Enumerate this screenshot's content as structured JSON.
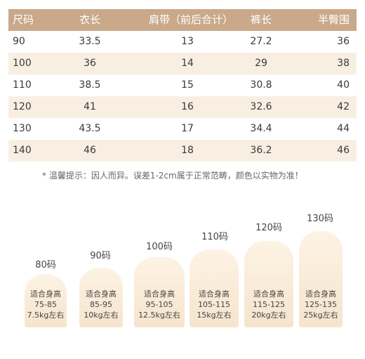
{
  "table": {
    "headers": [
      "尺码",
      "衣长",
      "肩带（前后合计）",
      "裤长",
      "半臀围"
    ],
    "rows": [
      [
        "90",
        "33.5",
        "13",
        "27.2",
        "36"
      ],
      [
        "100",
        "36",
        "14",
        "29",
        "38"
      ],
      [
        "110",
        "38.5",
        "15",
        "30.8",
        "40"
      ],
      [
        "120",
        "41",
        "16",
        "32.6",
        "42"
      ],
      [
        "130",
        "43.5",
        "17",
        "34.4",
        "44"
      ],
      [
        "140",
        "46",
        "18",
        "36.2",
        "46"
      ]
    ]
  },
  "note": "* 温馨提示：因人而异。误差1-2cm属于正常范畴，颜色以实物为准！",
  "sizes": [
    {
      "label": "80码",
      "fit": "适合身高",
      "height": "75-85",
      "weight": "7.5kg左右"
    },
    {
      "label": "90码",
      "fit": "适合身高",
      "height": "85-95",
      "weight": "10kg左右"
    },
    {
      "label": "100码",
      "fit": "适合身高",
      "height": "95-105",
      "weight": "12.5kg左右"
    },
    {
      "label": "110码",
      "fit": "适合身高",
      "height": "105-115",
      "weight": "15kg左右"
    },
    {
      "label": "120码",
      "fit": "适合身高",
      "height": "115-125",
      "weight": "20kg左右"
    },
    {
      "label": "130码",
      "fit": "适合身高",
      "height": "125-135",
      "weight": "25kg左右"
    }
  ],
  "colors": {
    "header_bg": "#c9a98a",
    "row_shade": "#f8efe2",
    "card_top": "#fdf3e4",
    "card_bottom": "#f6e4cd"
  }
}
